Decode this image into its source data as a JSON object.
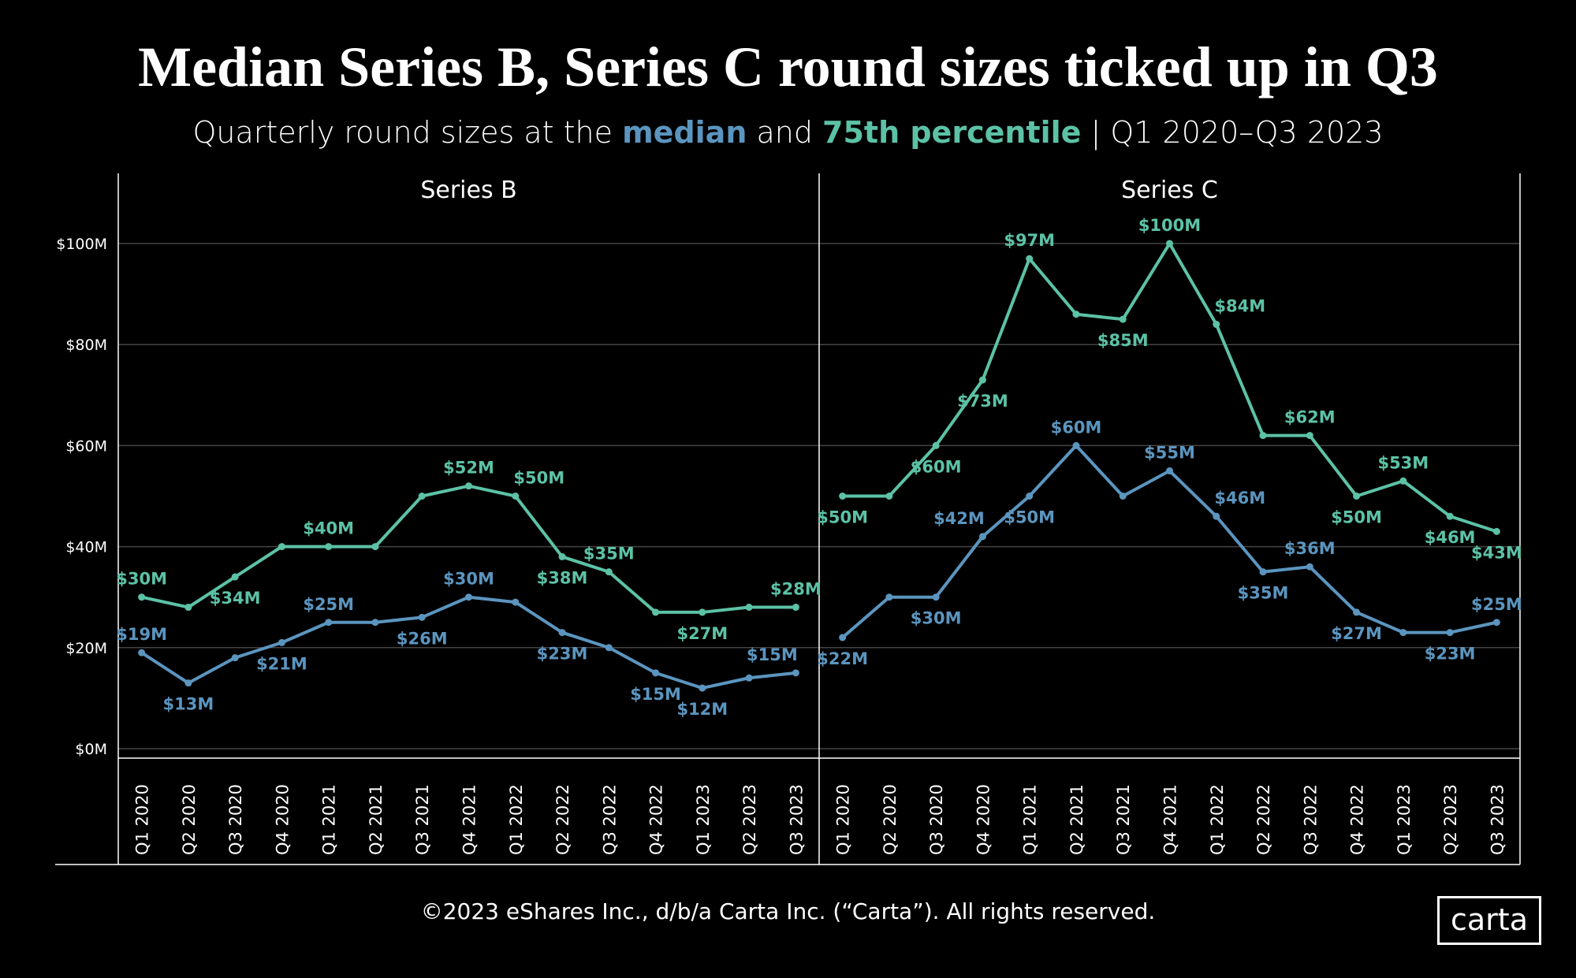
{
  "title": "Median Series B, Series C round sizes ticked up in Q3",
  "subtitle": {
    "prefix": "Quarterly round sizes at the ",
    "median_word": "median",
    "and_word": " and ",
    "p75_word": "75th percentile",
    "suffix": " | Q1 2020–Q3 2023"
  },
  "colors": {
    "median": "#5b95bf",
    "p75": "#5cc2a6",
    "background": "#000000"
  },
  "footer": "©2023 eShares Inc., d/b/a Carta Inc. (“Carta”). All rights reserved.",
  "logo": "carta",
  "chart_data": [
    {
      "type": "line",
      "title": "Series B",
      "categories": [
        "Q1 2020",
        "Q2 2020",
        "Q3 2020",
        "Q4 2020",
        "Q1 2021",
        "Q2 2021",
        "Q3 2021",
        "Q4 2021",
        "Q1 2022",
        "Q2 2022",
        "Q3 2022",
        "Q4 2022",
        "Q1 2023",
        "Q2 2023",
        "Q3 2023"
      ],
      "yticks": [
        "$0M",
        "$20M",
        "$40M",
        "$60M",
        "$80M",
        "$100M"
      ],
      "ylim": [
        0,
        100
      ],
      "grid": true,
      "series": [
        {
          "name": "75th percentile",
          "values": [
            30,
            28,
            34,
            40,
            40,
            40,
            50,
            52,
            50,
            38,
            35,
            27,
            27,
            28,
            28
          ],
          "labels": [
            "$30M",
            null,
            "$34M",
            null,
            "$40M",
            null,
            null,
            "$52M",
            "$50M",
            "$38M",
            "$35M",
            null,
            "$27M",
            null,
            "$28M"
          ]
        },
        {
          "name": "median",
          "values": [
            19,
            13,
            18,
            21,
            25,
            25,
            26,
            30,
            29,
            23,
            20,
            15,
            12,
            14,
            15
          ],
          "labels": [
            "$19M",
            "$13M",
            null,
            "$21M",
            "$25M",
            null,
            "$26M",
            "$30M",
            null,
            "$23M",
            null,
            "$15M",
            "$12M",
            null,
            "$15M"
          ]
        }
      ]
    },
    {
      "type": "line",
      "title": "Series C",
      "categories": [
        "Q1 2020",
        "Q2 2020",
        "Q3 2020",
        "Q4 2020",
        "Q1 2021",
        "Q2 2021",
        "Q3 2021",
        "Q4 2021",
        "Q1 2022",
        "Q2 2022",
        "Q3 2022",
        "Q4 2022",
        "Q1 2023",
        "Q2 2023",
        "Q3 2023"
      ],
      "ylim": [
        0,
        100
      ],
      "grid": true,
      "series": [
        {
          "name": "75th percentile",
          "values": [
            50,
            50,
            60,
            73,
            97,
            86,
            85,
            100,
            84,
            62,
            62,
            50,
            53,
            46,
            43
          ],
          "labels": [
            "$50M",
            null,
            "$60M",
            "$73M",
            "$97M",
            null,
            "$85M",
            "$100M",
            "$84M",
            null,
            "$62M",
            "$50M",
            "$53M",
            "$46M",
            "$43M"
          ]
        },
        {
          "name": "median",
          "values": [
            22,
            30,
            30,
            42,
            50,
            60,
            50,
            55,
            46,
            35,
            36,
            27,
            23,
            23,
            25
          ],
          "labels": [
            "$22M",
            null,
            "$30M",
            "$42M",
            "$50M",
            "$60M",
            null,
            "$55M",
            "$46M",
            "$35M",
            "$36M",
            "$27M",
            null,
            "$23M",
            "$25M"
          ]
        }
      ]
    }
  ]
}
